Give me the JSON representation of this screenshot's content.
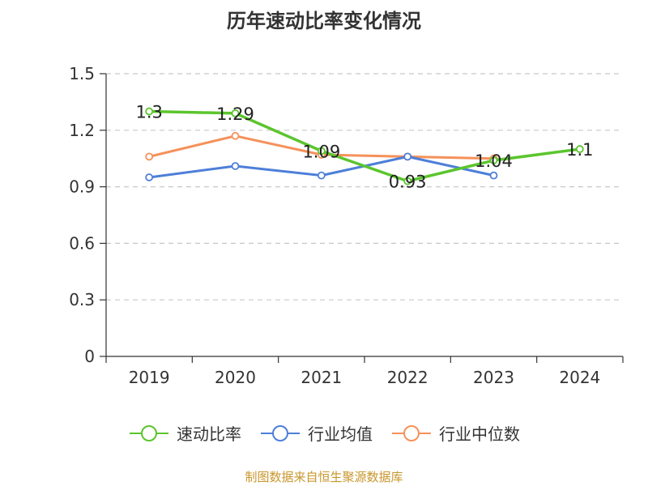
{
  "chart_data": {
    "type": "line",
    "title": "历年速动比率变化情况",
    "categories": [
      "2019",
      "2020",
      "2021",
      "2022",
      "2023",
      "2024"
    ],
    "ylim": [
      0,
      1.5
    ],
    "yticks": [
      0,
      0.3,
      0.6,
      0.9,
      1.2,
      1.5
    ],
    "ytick_labels": [
      "0",
      "0.3",
      "0.6",
      "0.9",
      "1.2",
      "1.5"
    ],
    "grid": true,
    "legend_position": "bottom",
    "series": [
      {
        "name": "速动比率",
        "color": "#5bc52d",
        "values": [
          1.3,
          1.29,
          1.09,
          0.93,
          1.04,
          1.1
        ],
        "labels": [
          "1.3",
          "1.29",
          "1.09",
          "0.93",
          "1.04",
          "1.1"
        ]
      },
      {
        "name": "行业均值",
        "color": "#4d7fd9",
        "values": [
          0.95,
          1.01,
          0.96,
          1.06,
          0.96,
          null
        ]
      },
      {
        "name": "行业中位数",
        "color": "#f5915a",
        "values": [
          1.06,
          1.17,
          1.07,
          1.06,
          1.05,
          null
        ]
      }
    ]
  },
  "source": "制图数据来自恒生聚源数据库"
}
